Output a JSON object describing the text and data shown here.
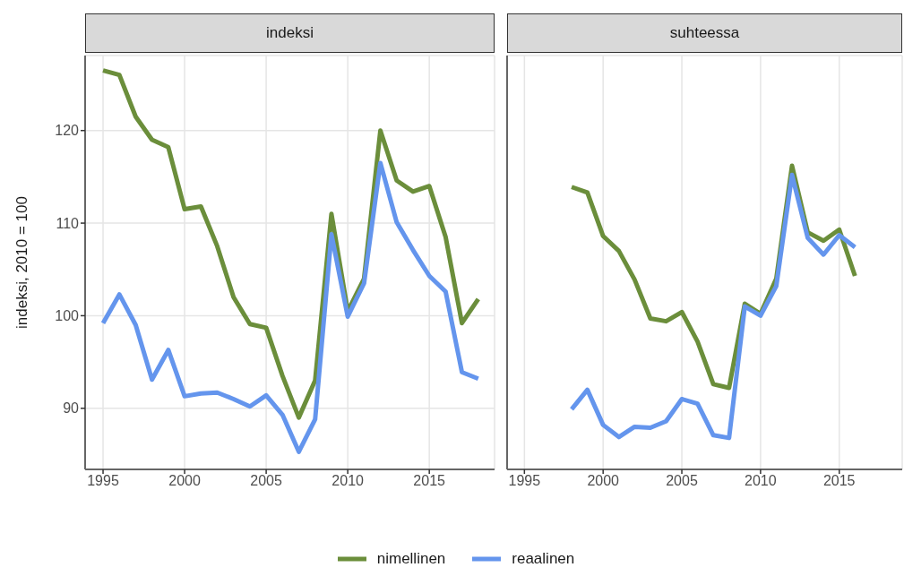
{
  "chart_data": [
    {
      "type": "line",
      "title": "indeksi",
      "ylabel": "indeksi, 2010 = 100",
      "xlim": [
        1993.9,
        2019
      ],
      "xticks": [
        1995,
        2000,
        2005,
        2010,
        2015
      ],
      "ylim": [
        83.4,
        128.1
      ],
      "yticks": [
        90,
        100,
        110,
        120
      ],
      "grid": true,
      "legend": "bottom",
      "line_style": "solid",
      "marker": "none",
      "x": [
        1995,
        1996,
        1997,
        1998,
        1999,
        2000,
        2001,
        2002,
        2003,
        2004,
        2005,
        2006,
        2007,
        2008,
        2009,
        2010,
        2011,
        2012,
        2013,
        2014,
        2015,
        2016,
        2017,
        2018
      ],
      "series": [
        {
          "name": "nimellinen",
          "color": "#6b8e3b",
          "values": [
            126.5,
            126,
            121.5,
            119,
            118.2,
            111.5,
            111.8,
            107.5,
            102,
            99.1,
            98.7,
            93.5,
            89,
            93,
            111,
            100.5,
            104,
            120,
            114.6,
            113.4,
            114,
            108.5,
            99.2,
            101.8
          ]
        },
        {
          "name": "reaalinen",
          "color": "#6495ed",
          "values": [
            99.2,
            102.3,
            99,
            93.1,
            96.3,
            91.3,
            91.6,
            91.7,
            91,
            90.2,
            91.4,
            89.3,
            85.3,
            88.8,
            108.8,
            99.9,
            103.5,
            116.5,
            110.1,
            107.1,
            104.3,
            102.6,
            93.9,
            93.2
          ]
        }
      ]
    },
    {
      "type": "line",
      "title": "suhteessa",
      "xlim": [
        1993.9,
        2019
      ],
      "xticks": [
        1995,
        2000,
        2005,
        2010,
        2015
      ],
      "ylim": [
        83.4,
        128.1
      ],
      "yticks": [
        90,
        100,
        110,
        120
      ],
      "grid": true,
      "tick_labels": "x",
      "line_style": "solid",
      "marker": "none",
      "x": [
        1998,
        1999,
        2000,
        2001,
        2002,
        2003,
        2004,
        2005,
        2006,
        2007,
        2008,
        2009,
        2010,
        2011,
        2012,
        2013,
        2014,
        2015,
        2016
      ],
      "series": [
        {
          "color": "#6b8e3b",
          "values": [
            113.9,
            113.3,
            108.6,
            107,
            103.9,
            99.7,
            99.4,
            100.4,
            97.2,
            92.6,
            92.2,
            101.3,
            100.2,
            104,
            116.2,
            109,
            108.1,
            109.3,
            104.3
          ]
        },
        {
          "color": "#6495ed",
          "values": [
            89.9,
            92,
            88.2,
            86.9,
            88,
            87.9,
            88.6,
            91,
            90.5,
            87.1,
            86.8,
            101,
            100,
            103.2,
            115.2,
            108.4,
            106.6,
            108.7,
            107.4
          ]
        }
      ]
    }
  ]
}
